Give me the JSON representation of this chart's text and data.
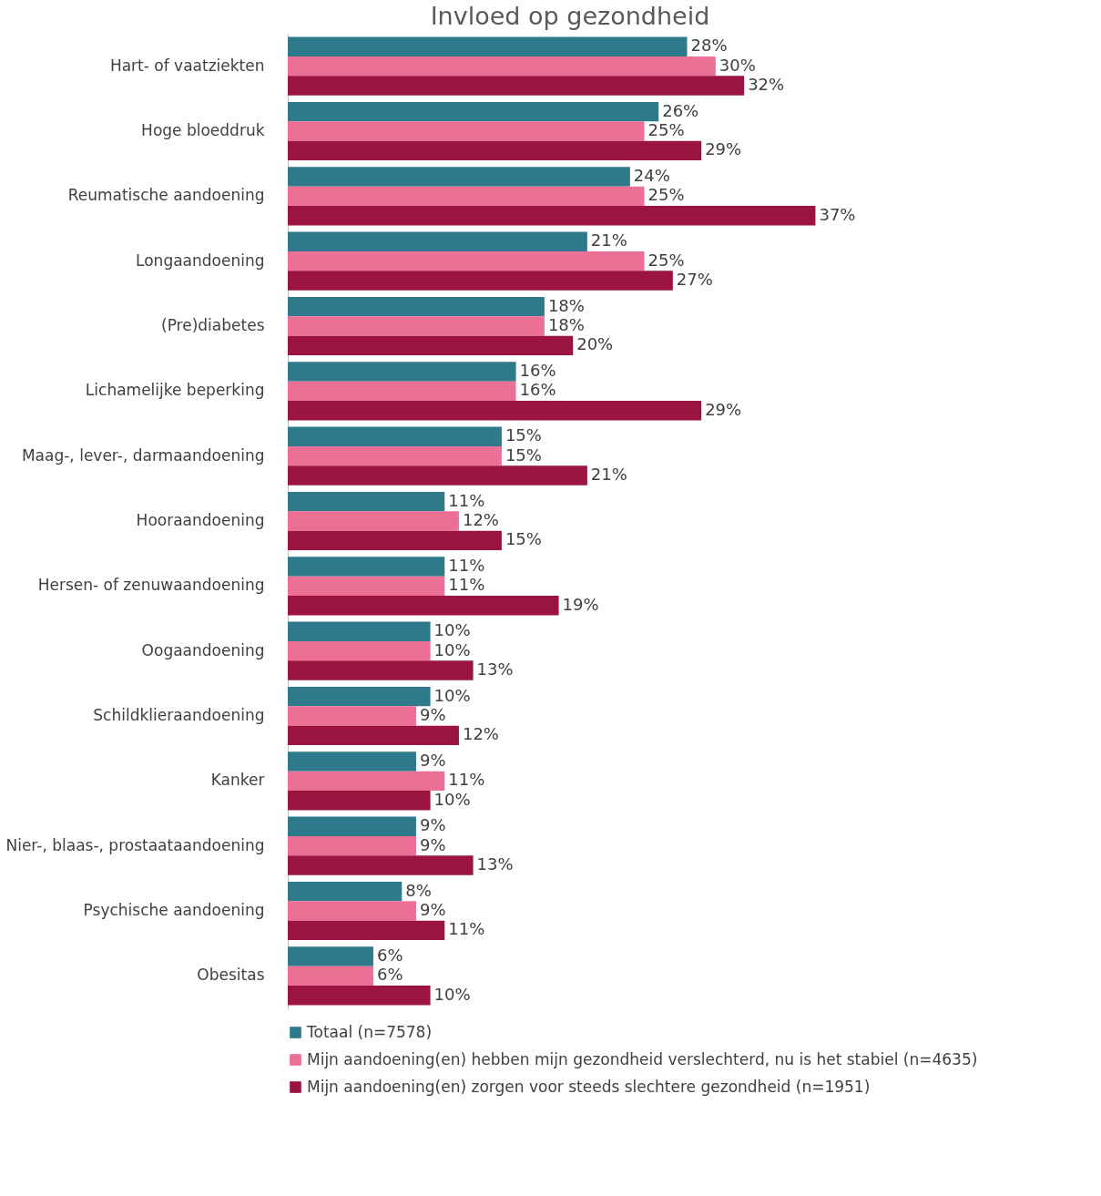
{
  "chart_data": {
    "type": "bar",
    "orientation": "horizontal",
    "title": "Invloed op gezondheid",
    "categories": [
      "Hart- of vaatziekten",
      "Hoge bloeddruk",
      "Reumatische aandoening",
      "Longaandoening",
      "(Pre)diabetes",
      "Lichamelijke beperking",
      "Maag-, lever-, darmaandoening",
      "Hooraandoening",
      "Hersen- of zenuwaandoening",
      "Oogaandoening",
      "Schildklieraandoening",
      "Kanker",
      "Nier-, blaas-, prostaataandoening",
      "Psychische aandoening",
      "Obesitas"
    ],
    "series": [
      {
        "name": "Totaal (n=7578)",
        "color": "#2e7a8c",
        "values": [
          28,
          26,
          24,
          21,
          18,
          16,
          15,
          11,
          11,
          10,
          10,
          9,
          9,
          8,
          6
        ],
        "value_labels": [
          "28%",
          "26%",
          "24%",
          "21%",
          "18%",
          "16%",
          "15%",
          "11%",
          "11%",
          "10%",
          "10%",
          "9%",
          "9%",
          "8%",
          "6%"
        ]
      },
      {
        "name": "Mijn aandoening(en) hebben mijn gezondheid verslechterd, nu is het stabiel (n=4635)",
        "color": "#ec6f96",
        "values": [
          30,
          25,
          25,
          25,
          18,
          16,
          15,
          12,
          11,
          10,
          9,
          11,
          9,
          9,
          6
        ],
        "value_labels": [
          "30%",
          "25%",
          "25%",
          "25%",
          "18%",
          "16%",
          "15%",
          "12%",
          "11%",
          "10%",
          "9%",
          "11%",
          "9%",
          "9%",
          "6%"
        ]
      },
      {
        "name": "Mijn aandoening(en) zorgen voor steeds slechtere gezondheid (n=1951)",
        "color": "#9b1440",
        "values": [
          32,
          29,
          37,
          27,
          20,
          29,
          21,
          15,
          19,
          13,
          12,
          10,
          13,
          11,
          10
        ],
        "value_labels": [
          "32%",
          "29%",
          "37%",
          "27%",
          "20%",
          "29%",
          "21%",
          "15%",
          "19%",
          "13%",
          "12%",
          "10%",
          "13%",
          "11%",
          "10%"
        ]
      }
    ],
    "legend": "bottom"
  }
}
